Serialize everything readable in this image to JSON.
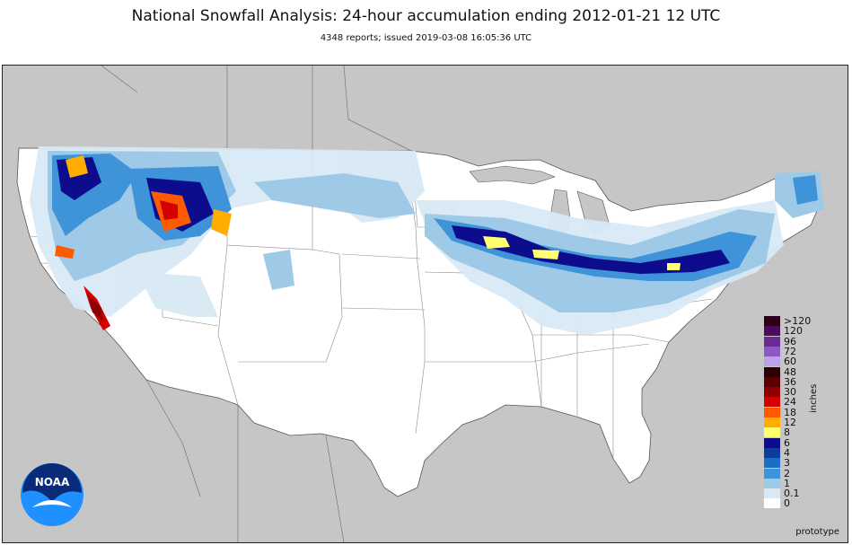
{
  "map": {
    "title": "National Snowfall Analysis: 24-hour accumulation ending 2012-01-21 12 UTC",
    "subtitle": "4348 reports; issued 2019-03-08 16:05:36 UTC",
    "footer": "prototype",
    "logo_text": "NOAA"
  },
  "legend": {
    "unit": "inches",
    "items": [
      {
        "label": ">120",
        "color": "#2b0018"
      },
      {
        "label": "120",
        "color": "#4a0a5e"
      },
      {
        "label": "96",
        "color": "#6b2b90"
      },
      {
        "label": "72",
        "color": "#8f57c4"
      },
      {
        "label": "60",
        "color": "#bba2e8"
      },
      {
        "label": "48",
        "color": "#2a0005"
      },
      {
        "label": "36",
        "color": "#5a0000"
      },
      {
        "label": "30",
        "color": "#8e0000"
      },
      {
        "label": "24",
        "color": "#d40000"
      },
      {
        "label": "18",
        "color": "#ff5a00"
      },
      {
        "label": "12",
        "color": "#ffae00"
      },
      {
        "label": "8",
        "color": "#ffff70"
      },
      {
        "label": "6",
        "color": "#0c0c8c"
      },
      {
        "label": "4",
        "color": "#0a3d9c"
      },
      {
        "label": "3",
        "color": "#1f6cc4"
      },
      {
        "label": "2",
        "color": "#3f93d8"
      },
      {
        "label": "1",
        "color": "#9ecae8"
      },
      {
        "label": "0.1",
        "color": "#d8e9f5"
      },
      {
        "label": "0",
        "color": "#ffffff"
      }
    ]
  }
}
